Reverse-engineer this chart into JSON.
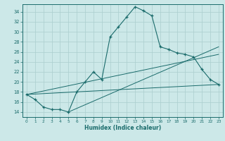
{
  "xlabel": "Humidex (Indice chaleur)",
  "xlim": [
    -0.5,
    23.5
  ],
  "ylim": [
    13.0,
    35.5
  ],
  "yticks": [
    14,
    16,
    18,
    20,
    22,
    24,
    26,
    28,
    30,
    32,
    34
  ],
  "xticks": [
    0,
    1,
    2,
    3,
    4,
    5,
    6,
    7,
    8,
    9,
    10,
    11,
    12,
    13,
    14,
    15,
    16,
    17,
    18,
    19,
    20,
    21,
    22,
    23
  ],
  "bg_color": "#cce8e8",
  "grid_color": "#aacece",
  "line_color": "#1a6b6b",
  "curve_x": [
    0,
    1,
    2,
    3,
    4,
    5,
    6,
    7,
    8,
    9,
    10,
    11,
    12,
    13,
    14,
    15,
    16,
    17,
    18,
    19,
    20,
    21,
    22,
    23
  ],
  "curve_y": [
    17.5,
    16.5,
    15.0,
    14.5,
    14.5,
    14.0,
    18.0,
    20.0,
    22.0,
    20.5,
    29.0,
    31.0,
    33.0,
    35.0,
    34.2,
    33.2,
    27.0,
    26.5,
    25.8,
    25.5,
    25.0,
    22.5,
    20.5,
    19.5
  ],
  "line1_x": [
    0,
    23
  ],
  "line1_y": [
    17.5,
    19.5
  ],
  "line2_x": [
    0,
    23
  ],
  "line2_y": [
    17.5,
    25.5
  ],
  "line3_x": [
    5,
    23
  ],
  "line3_y": [
    14.0,
    27.0
  ]
}
